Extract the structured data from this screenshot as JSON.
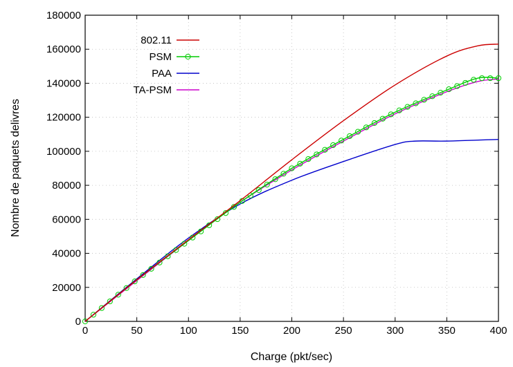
{
  "chart_data": {
    "type": "line",
    "title": "",
    "xlabel": "Charge (pkt/sec)",
    "ylabel": "Nombre de paquets delivres",
    "xlim": [
      0,
      400
    ],
    "ylim": [
      0,
      180000
    ],
    "xticks": [
      0,
      50,
      100,
      150,
      200,
      250,
      300,
      350,
      400
    ],
    "yticks": [
      0,
      20000,
      40000,
      60000,
      80000,
      100000,
      120000,
      140000,
      160000,
      180000
    ],
    "xtick_labels": [
      "0",
      "50",
      "100",
      "150",
      "200",
      "250",
      "300",
      "350",
      "400"
    ],
    "ytick_labels": [
      "0",
      "20000",
      "40000",
      "60000",
      "80000",
      "100000",
      "120000",
      "140000",
      "160000",
      "180000"
    ],
    "grid": true,
    "legend_position": "top-left",
    "series": [
      {
        "name": "802.11",
        "color": "#cc0000",
        "marker": "none",
        "x": [
          0,
          50,
          100,
          150,
          200,
          250,
          300,
          350,
          380,
          400
        ],
        "y": [
          0,
          24500,
          48000,
          71000,
          95000,
          118000,
          139000,
          156000,
          162000,
          163000
        ]
      },
      {
        "name": "PSM",
        "color": "#00cc00",
        "marker": "circle",
        "x": [
          0,
          50,
          100,
          150,
          200,
          250,
          300,
          350,
          380,
          400
        ],
        "y": [
          0,
          24500,
          47500,
          70000,
          90000,
          107000,
          123000,
          136000,
          143000,
          143000
        ]
      },
      {
        "name": "PAA",
        "color": "#0000cc",
        "marker": "none",
        "x": [
          0,
          50,
          100,
          150,
          200,
          250,
          300,
          320,
          350,
          400
        ],
        "y": [
          0,
          25000,
          49000,
          69000,
          83000,
          94000,
          104000,
          106000,
          106000,
          107000
        ]
      },
      {
        "name": "TA-PSM",
        "color": "#cc00cc",
        "marker": "none",
        "x": [
          0,
          50,
          100,
          150,
          200,
          250,
          300,
          350,
          380,
          400
        ],
        "y": [
          0,
          24000,
          47500,
          70000,
          89000,
          106000,
          122000,
          135000,
          141000,
          142500
        ]
      }
    ]
  }
}
